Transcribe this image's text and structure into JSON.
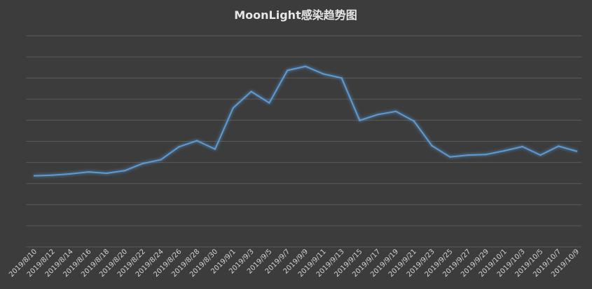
{
  "chart_data": {
    "type": "line",
    "title": "MoonLight感染趋势图",
    "xlabel": "",
    "ylabel": "",
    "categories": [
      "2019/8/10",
      "2019/8/12",
      "2019/8/14",
      "2019/8/16",
      "2019/8/18",
      "2019/8/20",
      "2019/8/22",
      "2019/8/24",
      "2019/8/26",
      "2019/8/28",
      "2019/8/30",
      "2019/9/1",
      "2019/9/3",
      "2019/9/5",
      "2019/9/7",
      "2019/9/9",
      "2019/9/11",
      "2019/9/13",
      "2019/9/15",
      "2019/9/17",
      "2019/9/19",
      "2019/9/21",
      "2019/9/23",
      "2019/9/25",
      "2019/9/27",
      "2019/9/29",
      "2019/10/1",
      "2019/10/3",
      "2019/10/5",
      "2019/10/7",
      "2019/10/9"
    ],
    "series": [
      {
        "values": [
          33.7,
          34.0,
          34.6,
          35.5,
          34.9,
          36.1,
          39.5,
          41.3,
          47.4,
          50.3,
          46.3,
          65.8,
          73.6,
          68.2,
          83.6,
          85.5,
          81.9,
          80.0,
          59.9,
          62.7,
          64.2,
          59.6,
          47.9,
          42.6,
          43.5,
          43.8,
          45.5,
          47.5,
          43.5,
          47.7,
          45.3
        ]
      }
    ],
    "ylim": [
      0,
      100
    ],
    "grid": true,
    "colors": {
      "background": "#3c3c3c",
      "line": "#5b9bd5",
      "grid": "#5a5a5a",
      "text": "#d2d2d2"
    }
  }
}
